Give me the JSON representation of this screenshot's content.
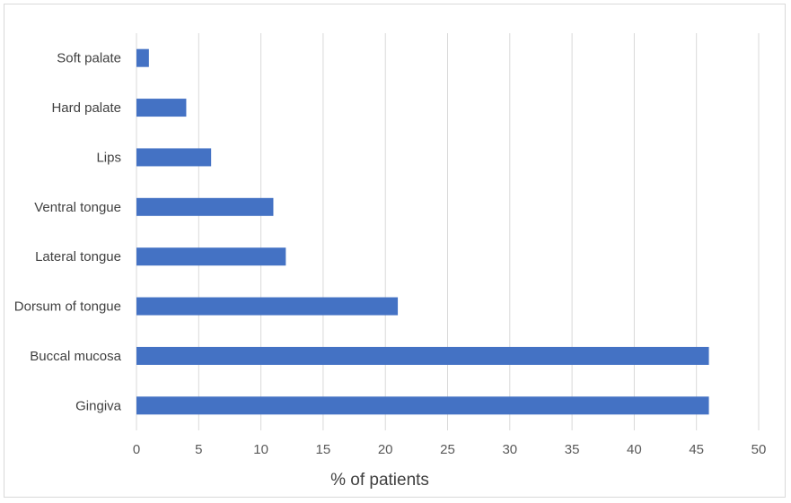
{
  "chart_data": {
    "type": "bar",
    "orientation": "horizontal",
    "title": "",
    "xlabel": "% of patients",
    "ylabel": "",
    "categories": [
      "Gingiva",
      "Buccal mucosa",
      "Dorsum of tongue",
      "Lateral tongue",
      "Ventral tongue",
      "Lips",
      "Hard palate",
      "Soft palate"
    ],
    "values": [
      46,
      46,
      21,
      12,
      11,
      6,
      4,
      1
    ],
    "xlim": [
      0,
      50
    ],
    "xticks": [
      "0",
      "5",
      "10",
      "15",
      "20",
      "25",
      "30",
      "35",
      "40",
      "45",
      "50"
    ],
    "grid": "vertical",
    "legend": "none",
    "bar_color": "#4472C4",
    "grid_color": "#d9d9d9"
  }
}
